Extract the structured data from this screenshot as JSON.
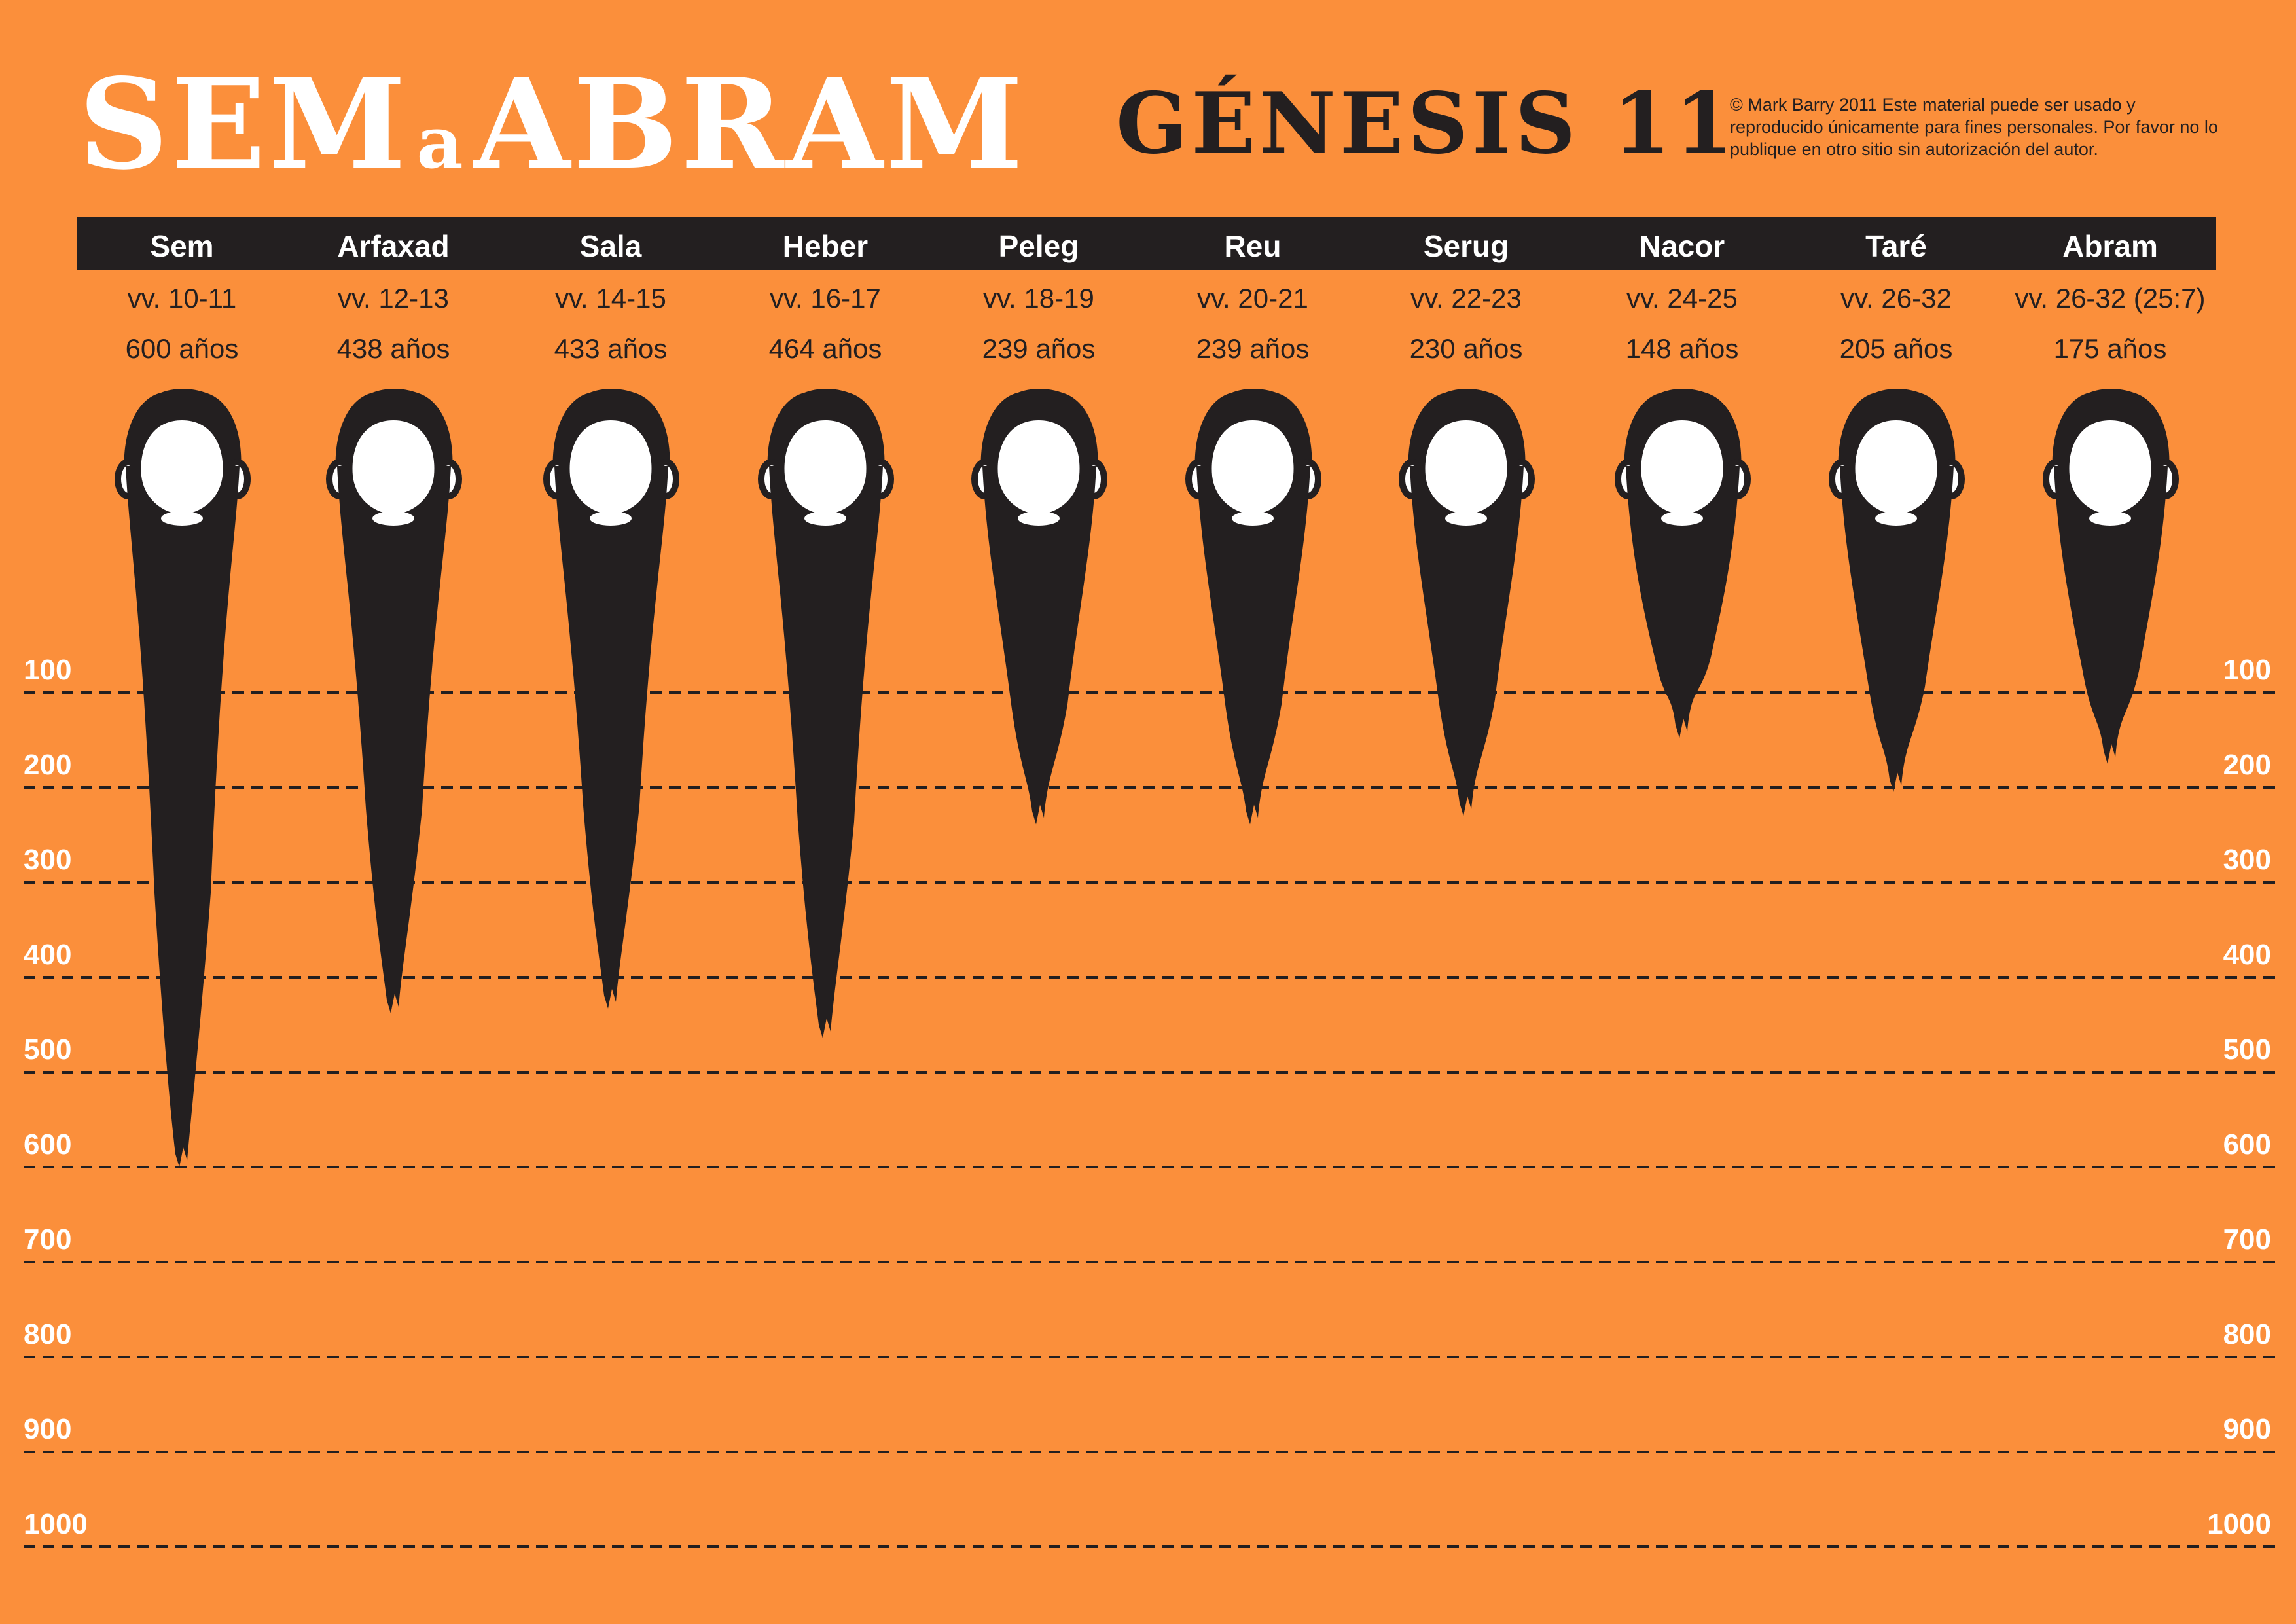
{
  "title": "SEM a ABRAM",
  "title_parts": {
    "left": "SEM",
    "middle": "a",
    "right": "ABRAM"
  },
  "subtitle": "GÉNESIS 11",
  "copyright": "© Mark Barry  2011  Este material puede ser usado y reproducido únicamente para fines personales. Por favor no lo publique en otro sitio sin autorización del autor.",
  "colors": {
    "background": "#fb8f3b",
    "dark": "#231f20",
    "white": "#ffffff"
  },
  "chart_data": {
    "type": "bar",
    "categories": [
      "Sem",
      "Arfaxad",
      "Sala",
      "Heber",
      "Peleg",
      "Reu",
      "Serug",
      "Nacor",
      "Taré",
      "Abram"
    ],
    "verses": [
      "vv. 10-11",
      "vv. 12-13",
      "vv. 14-15",
      "vv. 16-17",
      "vv. 18-19",
      "vv. 20-21",
      "vv. 22-23",
      "vv. 24-25",
      "vv. 26-32",
      "vv. 26-32 (25:7)"
    ],
    "value_labels": [
      "600 años",
      "438 años",
      "433 años",
      "464 años",
      "239 años",
      "239 años",
      "230 años",
      "148 años",
      "205 años",
      "175 años"
    ],
    "values": [
      600,
      438,
      433,
      464,
      239,
      239,
      230,
      148,
      205,
      175
    ],
    "ylim": [
      100,
      1000
    ],
    "y_ticks": [
      "100",
      "200",
      "300",
      "400",
      "500",
      "600",
      "700",
      "800",
      "900",
      "1000"
    ],
    "grid": true,
    "bar_shape": "beard",
    "bar_color": "#231f20"
  }
}
